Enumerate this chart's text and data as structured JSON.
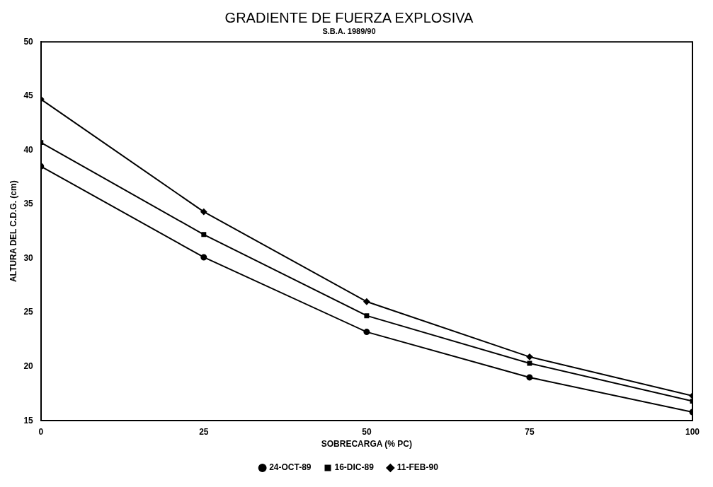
{
  "chart_data": {
    "type": "line",
    "title": "GRADIENTE DE FUERZA EXPLOSIVA",
    "subtitle": "S.B.A. 1989/90",
    "xlabel": "SOBRECARGA (% PC)",
    "ylabel": "ALTURA DEL C.D.G. (cm)",
    "x": [
      0,
      25,
      50,
      75,
      100
    ],
    "xlim": [
      0,
      100
    ],
    "xticks": [
      0,
      25,
      50,
      75,
      100
    ],
    "ylim": [
      15,
      50
    ],
    "yticks": [
      15,
      20,
      25,
      30,
      35,
      40,
      45,
      50
    ],
    "series": [
      {
        "name": "24-OCT-89",
        "color": "#000000",
        "marker": "circle",
        "values": [
          38.5,
          30.1,
          23.2,
          19.0,
          15.8
        ]
      },
      {
        "name": "16-DIC-89",
        "color": "#000000",
        "marker": "square",
        "values": [
          40.7,
          32.2,
          24.7,
          20.3,
          16.8
        ]
      },
      {
        "name": "11-FEB-90",
        "color": "#000000",
        "marker": "diamond",
        "values": [
          44.7,
          34.3,
          26.0,
          20.9,
          17.3
        ]
      }
    ],
    "grid": false,
    "legend": "bottom",
    "line_style": "solid"
  }
}
